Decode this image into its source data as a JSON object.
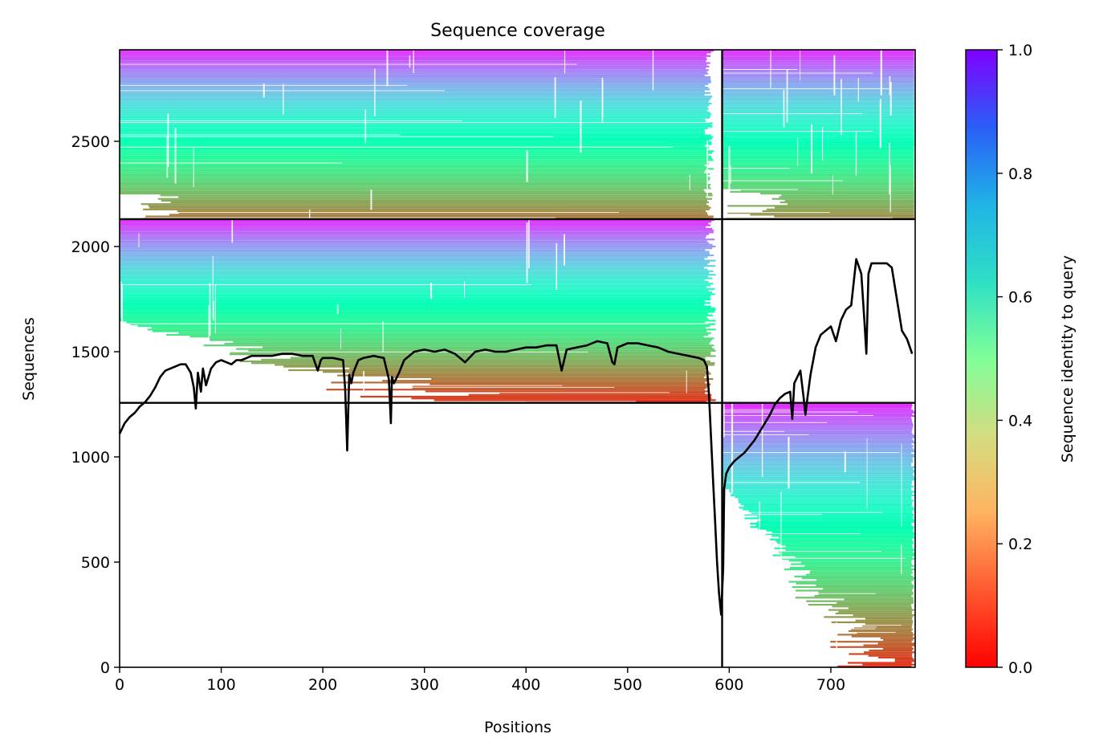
{
  "chart_data": {
    "type": "heatmap",
    "title": "Sequence coverage",
    "xlabel": "Positions",
    "ylabel": "Sequences",
    "xlim": [
      0,
      783
    ],
    "ylim": [
      0,
      2935
    ],
    "x_ticks": [
      0,
      100,
      200,
      300,
      400,
      500,
      600,
      700
    ],
    "y_ticks": [
      0,
      500,
      1000,
      1500,
      2000,
      2500
    ],
    "colorbar": {
      "label": "Sequence identity to query",
      "colormap": "rainbow_r",
      "range": [
        0,
        1
      ],
      "ticks": [
        0.0,
        0.2,
        0.4,
        0.6,
        0.8,
        1.0
      ],
      "tick_labels": [
        "0.0",
        "0.2",
        "0.4",
        "0.6",
        "0.8",
        "1.0"
      ]
    },
    "block_boundaries": {
      "x": [
        593
      ],
      "y": [
        1257,
        2130
      ]
    },
    "blocks": [
      {
        "x": [
          0,
          593
        ],
        "y": [
          2130,
          2935
        ],
        "identity_top": 0.95,
        "identity_bottom": 0.15
      },
      {
        "x": [
          593,
          783
        ],
        "y": [
          2130,
          2935
        ],
        "identity_top": 0.95,
        "identity_bottom": 0.18
      },
      {
        "x": [
          0,
          593
        ],
        "y": [
          1257,
          2130
        ],
        "identity_top": 0.95,
        "identity_bottom": 0.05
      },
      {
        "x": [
          593,
          783
        ],
        "y": [
          0,
          1257
        ],
        "identity_top": 0.95,
        "identity_bottom": 0.05
      }
    ],
    "coverage_line": {
      "color": "#000000",
      "x": [
        0,
        5,
        10,
        15,
        20,
        25,
        30,
        35,
        40,
        45,
        50,
        55,
        60,
        65,
        70,
        73,
        75,
        77,
        80,
        82,
        85,
        90,
        95,
        100,
        105,
        110,
        115,
        120,
        130,
        140,
        150,
        160,
        170,
        180,
        190,
        195,
        198,
        200,
        210,
        220,
        222,
        224,
        226,
        228,
        230,
        235,
        240,
        250,
        260,
        265,
        267,
        268,
        270,
        275,
        280,
        290,
        300,
        310,
        320,
        330,
        340,
        350,
        360,
        370,
        380,
        390,
        400,
        410,
        420,
        430,
        435,
        440,
        450,
        460,
        470,
        480,
        485,
        487,
        490,
        500,
        510,
        520,
        530,
        540,
        550,
        560,
        570,
        575,
        578,
        580,
        582,
        584,
        586,
        588,
        590,
        592,
        594,
        595,
        597,
        600,
        605,
        610,
        615,
        620,
        625,
        630,
        635,
        640,
        645,
        650,
        655,
        660,
        662,
        664,
        667,
        670,
        673,
        675,
        677,
        680,
        685,
        690,
        695,
        700,
        705,
        710,
        715,
        720,
        725,
        730,
        733,
        735,
        737,
        740,
        745,
        750,
        755,
        760,
        765,
        770,
        775,
        780,
        783
      ],
      "y": [
        1110,
        1160,
        1190,
        1210,
        1240,
        1260,
        1290,
        1330,
        1380,
        1410,
        1420,
        1430,
        1440,
        1440,
        1400,
        1330,
        1230,
        1400,
        1310,
        1420,
        1340,
        1420,
        1450,
        1460,
        1450,
        1440,
        1460,
        1460,
        1480,
        1480,
        1480,
        1490,
        1490,
        1480,
        1480,
        1410,
        1460,
        1470,
        1470,
        1460,
        1320,
        1030,
        1390,
        1350,
        1400,
        1460,
        1470,
        1480,
        1470,
        1370,
        1160,
        1380,
        1350,
        1400,
        1460,
        1500,
        1510,
        1500,
        1510,
        1490,
        1450,
        1500,
        1510,
        1500,
        1500,
        1510,
        1520,
        1520,
        1530,
        1530,
        1410,
        1510,
        1520,
        1530,
        1550,
        1540,
        1450,
        1440,
        1520,
        1540,
        1540,
        1530,
        1520,
        1500,
        1490,
        1480,
        1470,
        1460,
        1430,
        1300,
        1100,
        900,
        700,
        500,
        350,
        250,
        470,
        850,
        920,
        950,
        980,
        1000,
        1020,
        1050,
        1080,
        1120,
        1160,
        1200,
        1250,
        1280,
        1300,
        1310,
        1180,
        1350,
        1380,
        1410,
        1290,
        1200,
        1280,
        1390,
        1520,
        1580,
        1600,
        1620,
        1550,
        1650,
        1700,
        1720,
        1940,
        1870,
        1650,
        1490,
        1870,
        1920,
        1920,
        1920,
        1920,
        1900,
        1750,
        1600,
        1560,
        1490
      ]
    }
  }
}
